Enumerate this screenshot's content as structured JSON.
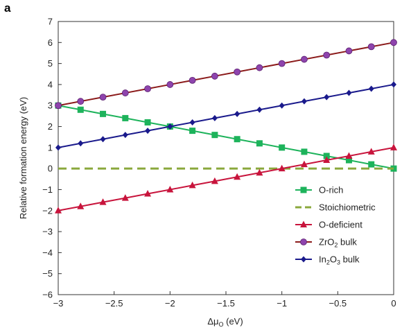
{
  "panel_label": "a",
  "chart_data": {
    "type": "line",
    "xlabel": "Δμ",
    "xlabel_sub": "O",
    "xlabel_unit": " (eV)",
    "ylabel": "Relative formation energy (eV)",
    "xlim": [
      -3,
      0
    ],
    "ylim": [
      -6,
      7
    ],
    "xticks": [
      -3,
      -2.5,
      -2,
      -1.5,
      -1,
      -0.5,
      0
    ],
    "xtick_labels": [
      "−3",
      "−2.5",
      "−2",
      "−1.5",
      "−1",
      "−0.5",
      "0"
    ],
    "yticks": [
      -6,
      -5,
      -4,
      -3,
      -2,
      -1,
      0,
      1,
      2,
      3,
      4,
      5,
      6,
      7
    ],
    "ytick_labels": [
      "−6",
      "−5",
      "−4",
      "−3",
      "−2",
      "−1",
      "0",
      "1",
      "2",
      "3",
      "4",
      "5",
      "6",
      "7"
    ],
    "grid": false,
    "legend_position": "lower-right",
    "x": [
      -3,
      -2.8,
      -2.6,
      -2.4,
      -2.2,
      -2,
      -1.8,
      -1.6,
      -1.4,
      -1.2,
      -1,
      -0.8,
      -0.6,
      -0.4,
      -0.2,
      0
    ],
    "series": [
      {
        "name": "O-rich",
        "name_parts": [
          [
            "O-rich",
            ""
          ]
        ],
        "color": "#1db35b",
        "marker": "square",
        "dashed": false,
        "values": [
          3,
          2.8,
          2.6,
          2.4,
          2.2,
          2,
          1.8,
          1.6,
          1.4,
          1.2,
          1,
          0.8,
          0.6,
          0.4,
          0.2,
          0
        ]
      },
      {
        "name": "Stoichiometric",
        "name_parts": [
          [
            "Stoichiometric",
            ""
          ]
        ],
        "color": "#8aa83c",
        "marker": "none",
        "dashed": true,
        "values": [
          0,
          0,
          0,
          0,
          0,
          0,
          0,
          0,
          0,
          0,
          0,
          0,
          0,
          0,
          0,
          0
        ]
      },
      {
        "name": "O-deficient",
        "name_parts": [
          [
            "O-deficient",
            ""
          ]
        ],
        "color": "#c8143c",
        "marker": "triangle",
        "dashed": false,
        "values": [
          -2,
          -1.8,
          -1.6,
          -1.4,
          -1.2,
          -1,
          -0.8,
          -0.6,
          -0.4,
          -0.2,
          0,
          0.2,
          0.4,
          0.6,
          0.8,
          1
        ]
      },
      {
        "name": "ZrO2 bulk",
        "name_parts": [
          [
            "ZrO",
            ""
          ],
          [
            "2",
            "sub"
          ],
          [
            " bulk",
            ""
          ]
        ],
        "color": "#8b1a1a",
        "marker_color": "#8e44ad",
        "marker": "circle",
        "dashed": false,
        "values": [
          3,
          3.2,
          3.4,
          3.6,
          3.8,
          4,
          4.2,
          4.4,
          4.6,
          4.8,
          5,
          5.2,
          5.4,
          5.6,
          5.8,
          6
        ]
      },
      {
        "name": "In2O3 bulk",
        "name_parts": [
          [
            "In",
            ""
          ],
          [
            "2",
            "sub"
          ],
          [
            "O",
            ""
          ],
          [
            "3",
            "sub"
          ],
          [
            " bulk",
            ""
          ]
        ],
        "color": "#1a1a8c",
        "marker": "diamond",
        "dashed": false,
        "values": [
          1,
          1.2,
          1.4,
          1.6,
          1.8,
          2,
          2.2,
          2.4,
          2.6,
          2.8,
          3,
          3.2,
          3.4,
          3.6,
          3.8,
          4
        ]
      }
    ]
  }
}
